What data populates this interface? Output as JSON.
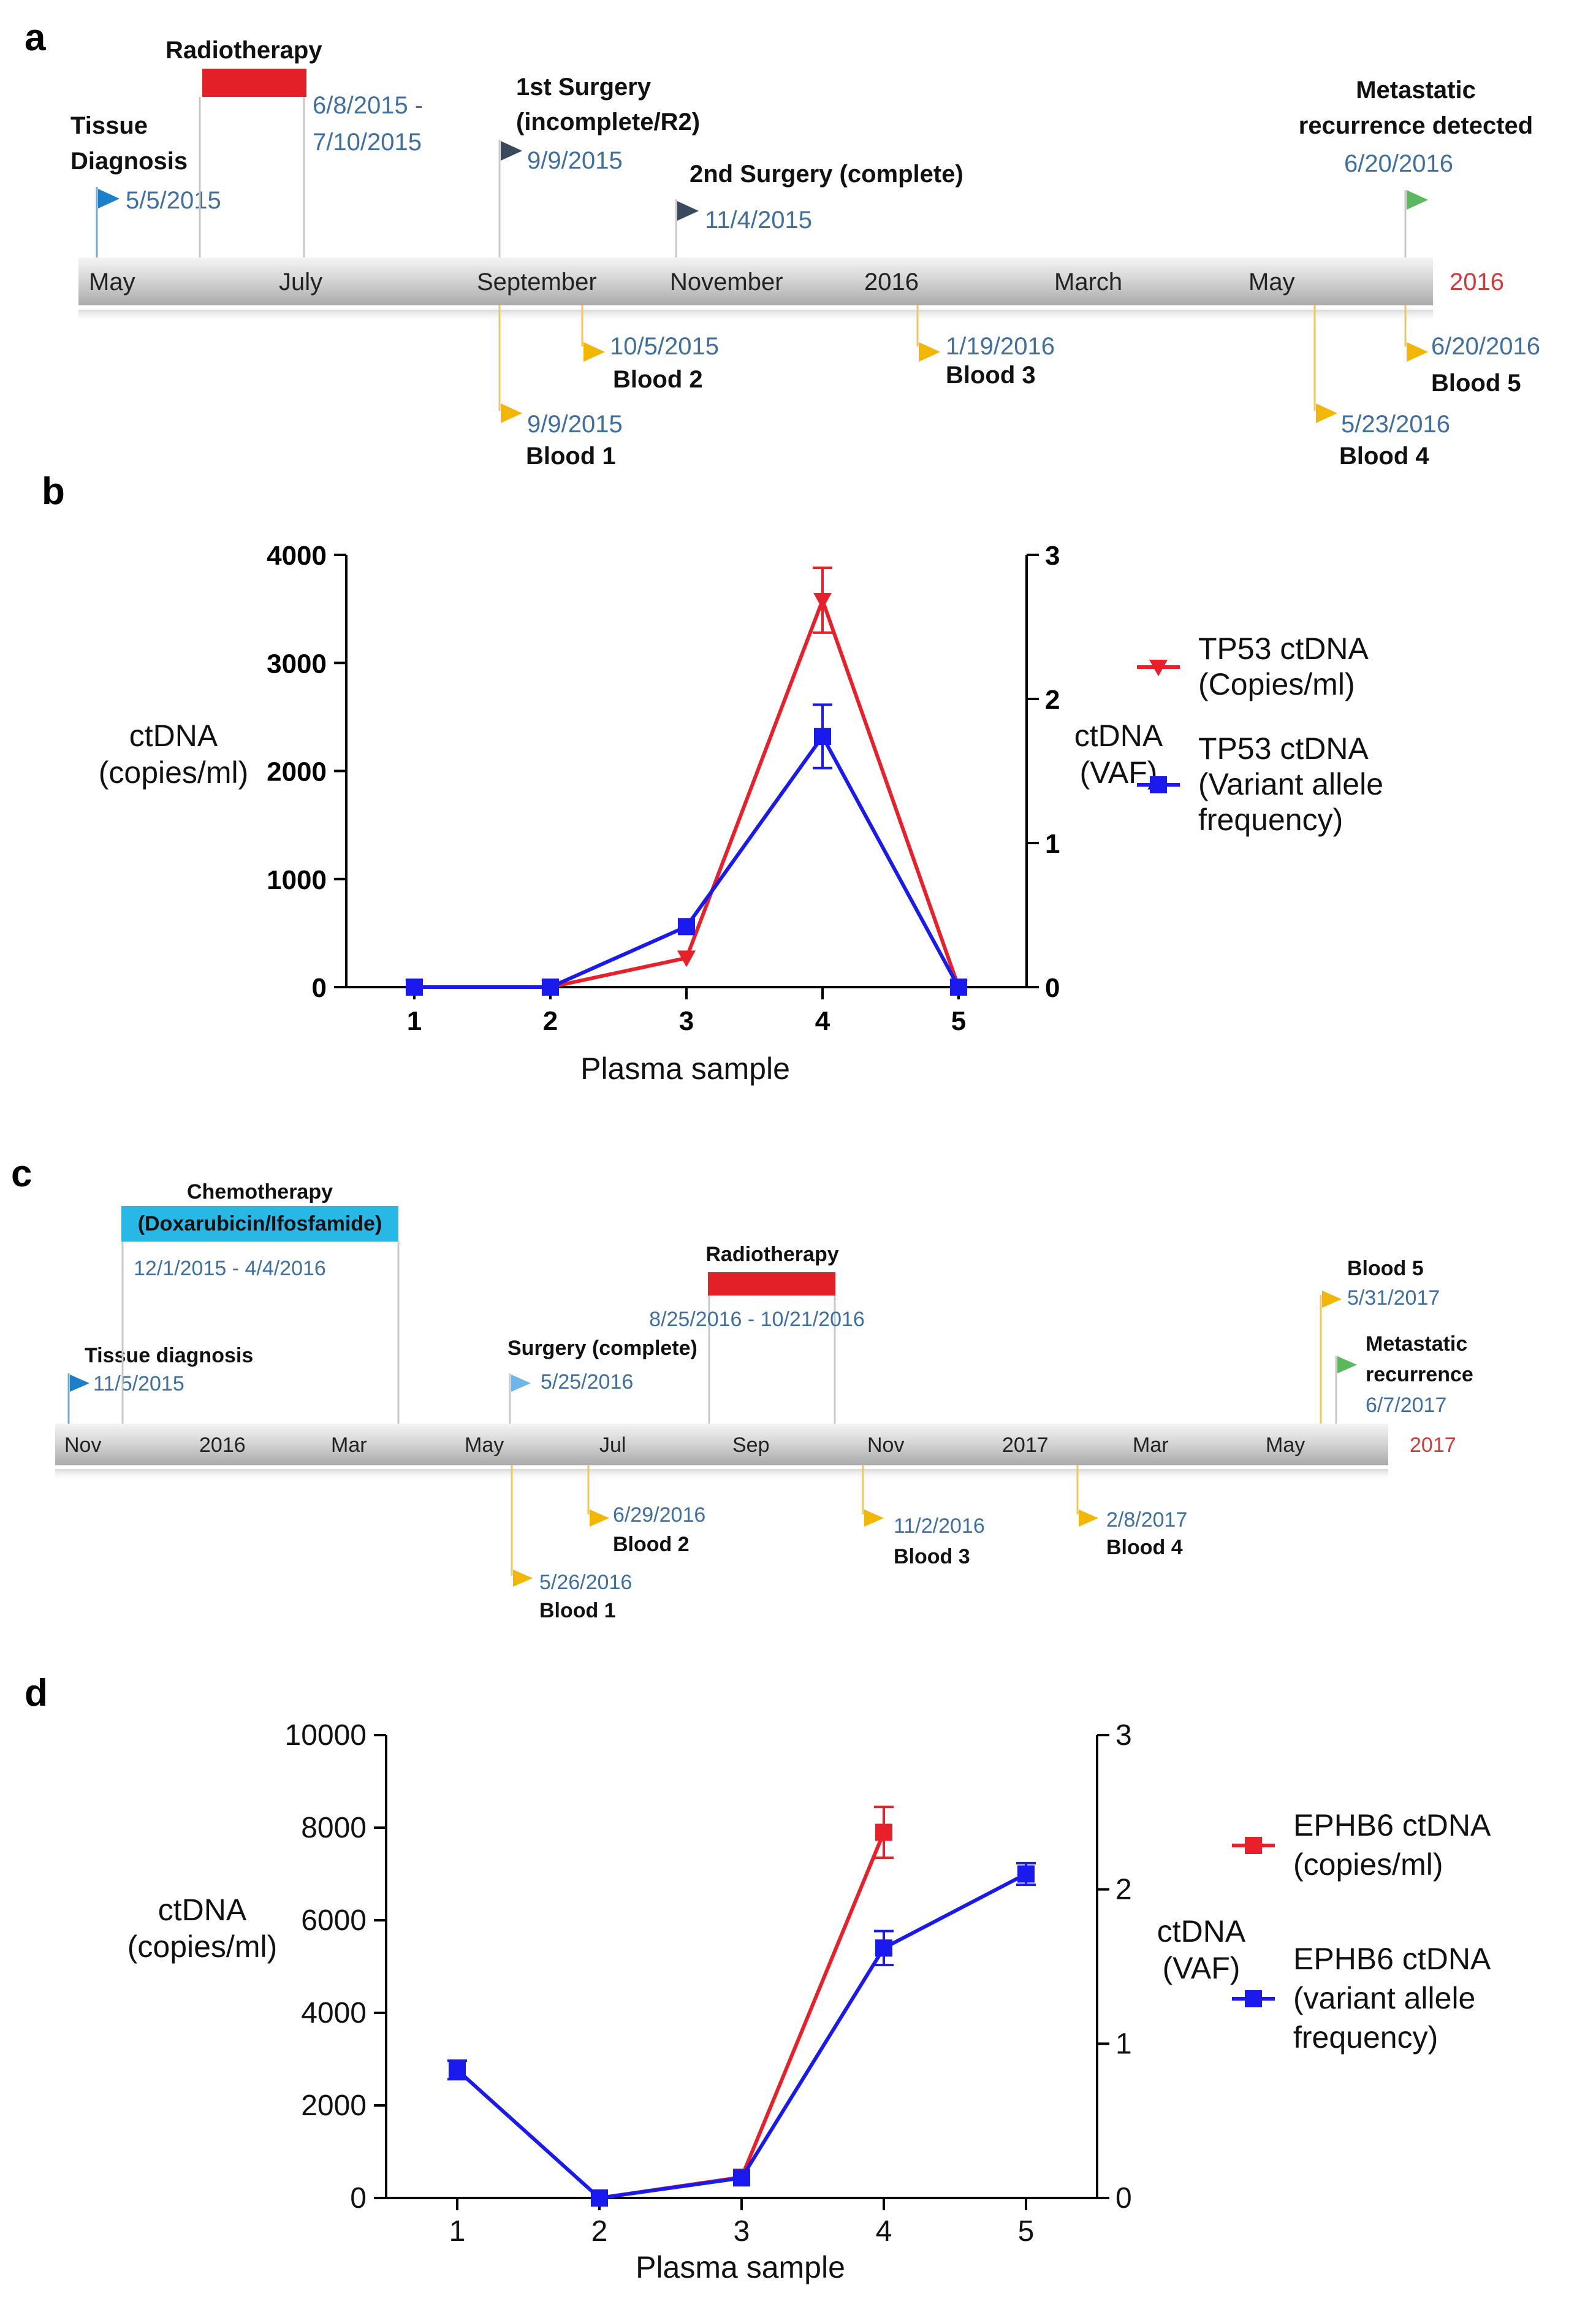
{
  "panels": {
    "a": {
      "letter": "a",
      "axis_labels": [
        "May",
        "July",
        "September",
        "November",
        "2016",
        "March",
        "May"
      ],
      "axis_end_label": "2016",
      "above": [
        {
          "title": [
            "Tissue",
            "Diagnosis"
          ],
          "date": [
            "5/5/2015"
          ]
        },
        {
          "title": [
            "Radiotherapy"
          ],
          "date": [
            "6/8/2015 -",
            "7/10/2015"
          ]
        },
        {
          "title": [
            "1st Surgery",
            "(incomplete/R2)"
          ],
          "date": [
            "9/9/2015"
          ]
        },
        {
          "title": [
            "2nd Surgery (complete)"
          ],
          "date": [
            "11/4/2015"
          ]
        },
        {
          "title": [
            "Metastatic",
            "recurrence detected"
          ],
          "date": [
            "6/20/2016"
          ]
        }
      ],
      "below": [
        {
          "date": "9/9/2015",
          "label": "Blood 1"
        },
        {
          "date": "10/5/2015",
          "label": "Blood 2"
        },
        {
          "date": "1/19/2016",
          "label": "Blood 3"
        },
        {
          "date": "5/23/2016",
          "label": "Blood 4"
        },
        {
          "date": "6/20/2016",
          "label": "Blood 5"
        }
      ]
    },
    "b": {
      "letter": "b"
    },
    "c": {
      "letter": "c",
      "axis_labels": [
        "Nov",
        "2016",
        "Mar",
        "May",
        "Jul",
        "Sep",
        "Nov",
        "2017",
        "Mar",
        "May"
      ],
      "axis_end_label": "2017",
      "above": [
        {
          "title": [
            "Tissue diagnosis"
          ],
          "date": [
            "11/5/2015"
          ]
        },
        {
          "title": [
            "Chemotherapy"
          ],
          "bar_label": "(Doxarubicin/Ifosfamide)",
          "date": [
            "12/1/2015 - 4/4/2016"
          ]
        },
        {
          "title": [
            "Surgery (complete)"
          ],
          "date": [
            "5/25/2016"
          ]
        },
        {
          "title": [
            "Radiotherapy"
          ],
          "date": [
            "8/25/2016 - 10/21/2016"
          ]
        },
        {
          "title": [
            "Blood 5"
          ],
          "date": [
            "5/31/2017"
          ]
        },
        {
          "title": [
            "Metastatic",
            "recurrence"
          ],
          "date": [
            "6/7/2017"
          ]
        }
      ],
      "below": [
        {
          "date": "5/26/2016",
          "label": "Blood 1"
        },
        {
          "date": "6/29/2016",
          "label": "Blood 2"
        },
        {
          "date": "11/2/2016",
          "label": "Blood 3"
        },
        {
          "date": "2/8/2017",
          "label": "Blood 4"
        }
      ]
    },
    "d": {
      "letter": "d"
    }
  },
  "chart_data": [
    {
      "panel": "b",
      "type": "line",
      "xlabel": "Plasma sample",
      "ylabel": [
        "ctDNA",
        "(copies/ml)"
      ],
      "y2label": [
        "ctDNA",
        "(VAF)"
      ],
      "categories": [
        "1",
        "2",
        "3",
        "4",
        "5"
      ],
      "ylim": [
        0,
        4000
      ],
      "yticks": [
        0,
        1000,
        2000,
        3000,
        4000
      ],
      "y2lim": [
        0,
        3
      ],
      "y2ticks": [
        0,
        1,
        2,
        3
      ],
      "series": [
        {
          "name": "TP53 ctDNA (Copies/ml)",
          "legend": [
            "TP53 ctDNA",
            "(Copies/ml)"
          ],
          "axis": "left",
          "color": "#e8202a",
          "marker": "triangle-down",
          "values": [
            0,
            0,
            270,
            3580,
            0
          ],
          "error": [
            0,
            0,
            0,
            300,
            0
          ]
        },
        {
          "name": "TP53 ctDNA (Variant allele frequency)",
          "legend": [
            "TP53 ctDNA",
            "(Variant allele",
            "frequency)"
          ],
          "axis": "right",
          "color": "#1a1aee",
          "marker": "square",
          "values": [
            0,
            0,
            0.42,
            1.74,
            0
          ],
          "error": [
            0,
            0,
            0,
            0.22,
            0
          ]
        }
      ]
    },
    {
      "panel": "d",
      "type": "line",
      "xlabel": "Plasma sample",
      "ylabel": [
        "ctDNA",
        "(copies/ml)"
      ],
      "y2label": [
        "ctDNA",
        "(VAF)"
      ],
      "categories": [
        "1",
        "2",
        "3",
        "4",
        "5"
      ],
      "ylim": [
        0,
        10000
      ],
      "yticks": [
        0,
        2000,
        4000,
        6000,
        8000,
        10000
      ],
      "y2lim": [
        0,
        3
      ],
      "y2ticks": [
        0,
        1,
        2,
        3
      ],
      "series": [
        {
          "name": "EPHB6 ctDNA (copies/ml)",
          "legend": [
            "EPHB6 ctDNA",
            "(copies/ml)"
          ],
          "axis": "left",
          "color": "#e8202a",
          "marker": "square",
          "values": [
            null,
            0,
            450,
            7900,
            null
          ],
          "error": [
            0,
            0,
            0,
            550,
            0
          ]
        },
        {
          "name": "EPHB6 ctDNA (variant allele frequency)",
          "legend": [
            "EPHB6 ctDNA",
            "(variant allele",
            "frequency)"
          ],
          "axis": "right",
          "color": "#1a1aee",
          "marker": "square",
          "values": [
            0.83,
            0,
            0.13,
            1.62,
            2.1
          ],
          "error": [
            0.06,
            0,
            0,
            0.11,
            0.07
          ]
        }
      ]
    }
  ]
}
